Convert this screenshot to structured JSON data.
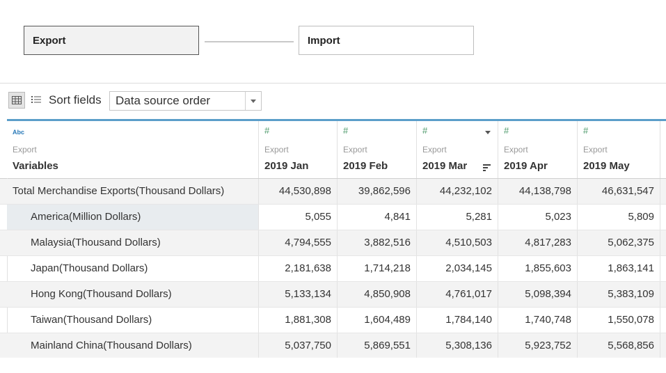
{
  "relationship": {
    "left_table": "Export",
    "right_table": "Import"
  },
  "toolbar": {
    "sort_label": "Sort fields",
    "sort_value": "Data source order",
    "icons": [
      "grid-view-icon",
      "list-view-icon",
      "dropdown-caret-icon"
    ]
  },
  "grid": {
    "columns": [
      {
        "type": "Abc",
        "source": "Export",
        "name": "Variables"
      },
      {
        "type": "#",
        "source": "Export",
        "name": "2019 Jan"
      },
      {
        "type": "#",
        "source": "Export",
        "name": "2019 Feb"
      },
      {
        "type": "#",
        "source": "Export",
        "name": "2019 Mar"
      },
      {
        "type": "#",
        "source": "Export",
        "name": "2019 Apr"
      },
      {
        "type": "#",
        "source": "Export",
        "name": "2019 May"
      }
    ],
    "rows": [
      {
        "label": "Total Merchandise Exports(Thousand Dollars)",
        "values": [
          "44,530,898",
          "39,862,596",
          "44,232,102",
          "44,138,798",
          "46,631,547"
        ]
      },
      {
        "label": "America(Million Dollars)",
        "values": [
          "5,055",
          "4,841",
          "5,281",
          "5,023",
          "5,809"
        ]
      },
      {
        "label": "Malaysia(Thousand Dollars)",
        "values": [
          "4,794,555",
          "3,882,516",
          "4,510,503",
          "4,817,283",
          "5,062,375"
        ]
      },
      {
        "label": "Japan(Thousand Dollars)",
        "values": [
          "2,181,638",
          "1,714,218",
          "2,034,145",
          "1,855,603",
          "1,863,141"
        ]
      },
      {
        "label": "Hong Kong(Thousand Dollars)",
        "values": [
          "5,133,134",
          "4,850,908",
          "4,761,017",
          "5,098,394",
          "5,383,109"
        ]
      },
      {
        "label": "Taiwan(Thousand Dollars)",
        "values": [
          "1,881,308",
          "1,604,489",
          "1,784,140",
          "1,740,748",
          "1,550,078"
        ]
      },
      {
        "label": "Mainland China(Thousand Dollars)",
        "values": [
          "5,037,750",
          "5,869,551",
          "5,308,136",
          "5,923,752",
          "5,568,856"
        ]
      }
    ]
  },
  "colors": {
    "accent_border": "#5b9ec9",
    "number_type": "#4c9a6a",
    "string_type": "#2b7bb9"
  }
}
